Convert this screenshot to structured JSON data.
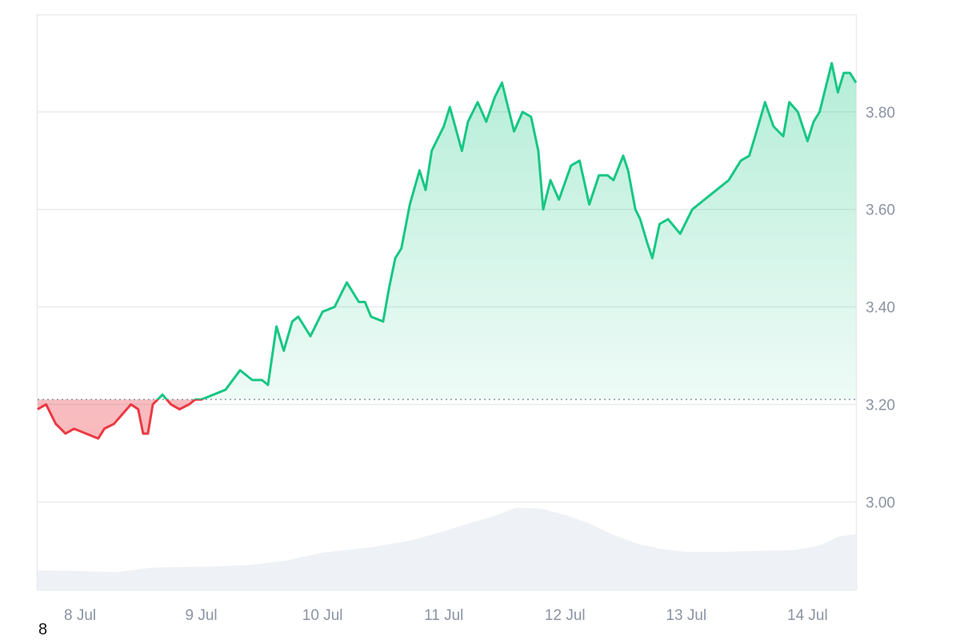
{
  "corner_label": "8",
  "colors": {
    "up": "#16c784",
    "down": "#ea3943",
    "grid": "#e8ebee",
    "volume": "#eef1f5",
    "axis_text": "#8a93a3"
  },
  "chart_data": {
    "type": "area",
    "baseline": 3.21,
    "ylim": [
      2.82,
      4.0
    ],
    "grid": true,
    "y_ticks": [
      3.0,
      3.2,
      3.4,
      3.6,
      3.8
    ],
    "y_tick_labels": [
      "3.00",
      "3.20",
      "3.40",
      "3.60",
      "3.80"
    ],
    "x_range": [
      7.65,
      14.4
    ],
    "x_ticks": [
      8,
      9,
      10,
      11,
      12,
      13,
      14
    ],
    "x_tick_labels": [
      "8 Jul",
      "9 Jul",
      "10 Jul",
      "11 Jul",
      "12 Jul",
      "13 Jul",
      "14 Jul"
    ],
    "series": [
      {
        "x": [
          7.65,
          7.72,
          7.8,
          7.88,
          7.95,
          8.05,
          8.15,
          8.2,
          8.28,
          8.35,
          8.42,
          8.48,
          8.52,
          8.56,
          8.6,
          8.68,
          8.75,
          8.82,
          8.9,
          8.95,
          9.0,
          9.1,
          9.2,
          9.32,
          9.42,
          9.5,
          9.55,
          9.62,
          9.68,
          9.75,
          9.8,
          9.9,
          10.0,
          10.1,
          10.2,
          10.3,
          10.35,
          10.4,
          10.5,
          10.55,
          10.6,
          10.65,
          10.72,
          10.8,
          10.85,
          10.9,
          11.0,
          11.05,
          11.15,
          11.2,
          11.28,
          11.35,
          11.42,
          11.48,
          11.52,
          11.58,
          11.65,
          11.72,
          11.78,
          11.82,
          11.88,
          11.95,
          12.05,
          12.12,
          12.2,
          12.28,
          12.35,
          12.4,
          12.48,
          12.52,
          12.58,
          12.62,
          12.68,
          12.72,
          12.78,
          12.85,
          12.95,
          13.05,
          13.15,
          13.25,
          13.35,
          13.45,
          13.52,
          13.58,
          13.65,
          13.72,
          13.8,
          13.85,
          13.92,
          14.0,
          14.05,
          14.1,
          14.15,
          14.2,
          14.25,
          14.3,
          14.35,
          14.4
        ],
        "values": [
          3.19,
          3.2,
          3.16,
          3.14,
          3.15,
          3.14,
          3.13,
          3.15,
          3.16,
          3.18,
          3.2,
          3.19,
          3.14,
          3.14,
          3.2,
          3.22,
          3.2,
          3.19,
          3.2,
          3.21,
          3.21,
          3.22,
          3.23,
          3.27,
          3.25,
          3.25,
          3.24,
          3.36,
          3.31,
          3.37,
          3.38,
          3.34,
          3.39,
          3.4,
          3.45,
          3.41,
          3.41,
          3.38,
          3.37,
          3.44,
          3.5,
          3.52,
          3.61,
          3.68,
          3.64,
          3.72,
          3.77,
          3.81,
          3.72,
          3.78,
          3.82,
          3.78,
          3.83,
          3.86,
          3.82,
          3.76,
          3.8,
          3.79,
          3.72,
          3.6,
          3.66,
          3.62,
          3.69,
          3.7,
          3.61,
          3.67,
          3.67,
          3.66,
          3.71,
          3.68,
          3.6,
          3.58,
          3.53,
          3.5,
          3.57,
          3.58,
          3.55,
          3.6,
          3.62,
          3.64,
          3.66,
          3.7,
          3.71,
          3.76,
          3.82,
          3.77,
          3.75,
          3.82,
          3.8,
          3.74,
          3.78,
          3.8,
          3.85,
          3.9,
          3.84,
          3.88,
          3.88,
          3.86
        ]
      }
    ],
    "volume": {
      "x": [
        7.65,
        8.0,
        8.3,
        8.6,
        9.0,
        9.4,
        9.7,
        10.0,
        10.4,
        10.7,
        11.0,
        11.2,
        11.4,
        11.6,
        11.8,
        12.0,
        12.2,
        12.4,
        12.6,
        12.8,
        13.0,
        13.3,
        13.6,
        13.9,
        14.1,
        14.25,
        14.4
      ],
      "values": [
        0.22,
        0.21,
        0.2,
        0.25,
        0.26,
        0.28,
        0.33,
        0.42,
        0.48,
        0.55,
        0.66,
        0.75,
        0.83,
        0.93,
        0.92,
        0.85,
        0.75,
        0.62,
        0.52,
        0.46,
        0.43,
        0.43,
        0.44,
        0.45,
        0.5,
        0.6,
        0.63
      ]
    }
  }
}
